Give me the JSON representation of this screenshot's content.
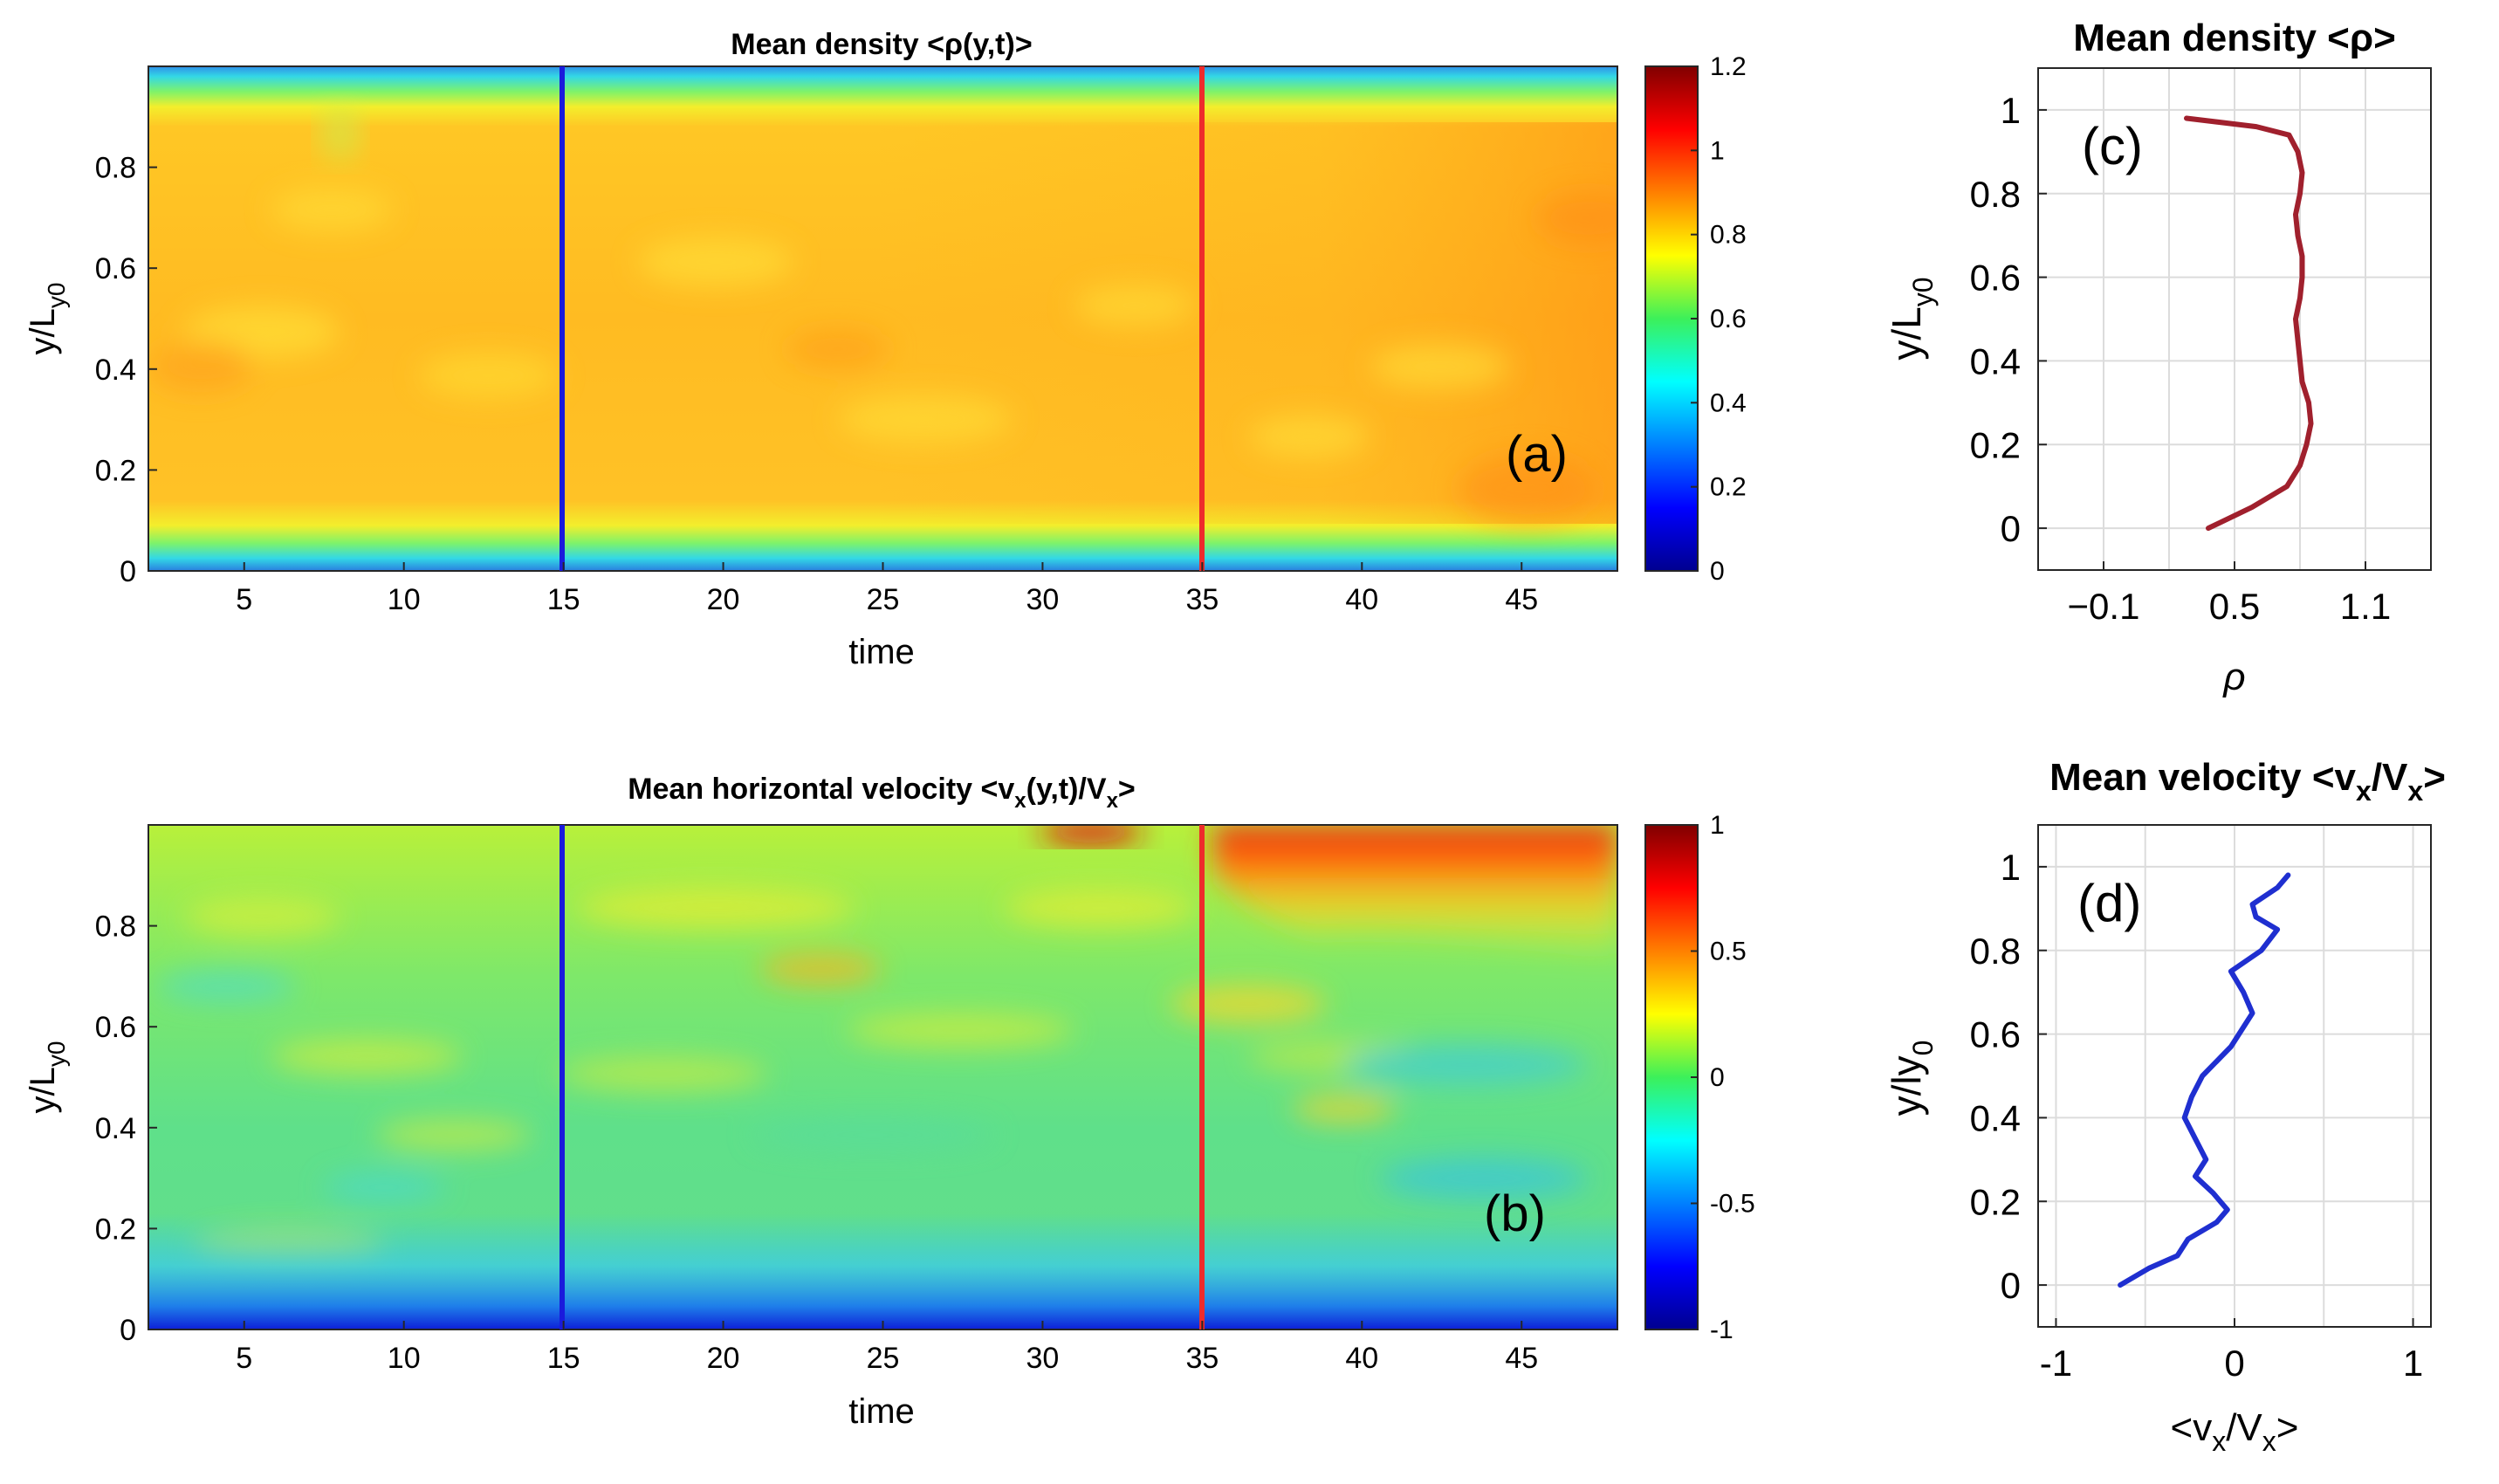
{
  "chart_data": [
    {
      "id": "a",
      "type": "heatmap",
      "title": "Mean density <ρ(y,t)>",
      "xlabel": "time",
      "ylabel_main": "y/L",
      "ylabel_sub": "y0",
      "panel_label": "(a)",
      "xlim": [
        2,
        48
      ],
      "ylim": [
        0,
        1
      ],
      "xticks": [
        5,
        10,
        15,
        20,
        25,
        30,
        35,
        40,
        45
      ],
      "yticks": [
        0,
        0.2,
        0.4,
        0.6,
        0.8
      ],
      "colorbar": {
        "range": [
          0,
          1.2
        ],
        "ticks": [
          0,
          0.2,
          0.4,
          0.6,
          0.8,
          1,
          1.2
        ],
        "colormap": "jet"
      },
      "markers": [
        {
          "x": 15,
          "color": "#1a1adc"
        },
        {
          "x": 35,
          "color": "#ee2b2b"
        }
      ]
    },
    {
      "id": "b",
      "type": "heatmap",
      "title": "Mean horizontal velocity <v",
      "title_parts": [
        "Mean horizontal velocity <v",
        "x",
        "(y,t)/V",
        "x",
        ">"
      ],
      "xlabel": "time",
      "ylabel_main": "y/L",
      "ylabel_sub": "y0",
      "panel_label": "(b)",
      "xlim": [
        2,
        48
      ],
      "ylim": [
        0,
        1
      ],
      "xticks": [
        5,
        10,
        15,
        20,
        25,
        30,
        35,
        40,
        45
      ],
      "yticks": [
        0,
        0.2,
        0.4,
        0.6,
        0.8
      ],
      "colorbar": {
        "range": [
          -1,
          1
        ],
        "ticks": [
          -1,
          -0.5,
          0,
          0.5,
          1
        ],
        "colormap": "jet"
      },
      "markers": [
        {
          "x": 15,
          "color": "#1a1adc"
        },
        {
          "x": 35,
          "color": "#ee2b2b"
        }
      ]
    },
    {
      "id": "c",
      "type": "line",
      "title": "Mean density <ρ>",
      "xlabel": "ρ",
      "ylabel_main": "y/L",
      "ylabel_sub": "y0",
      "panel_label": "(c)",
      "xlim": [
        -0.4,
        1.4
      ],
      "ylim": [
        -0.1,
        1.1
      ],
      "xticks": [
        -0.1,
        0.5,
        1.1
      ],
      "xtick_labels": [
        "−0.1",
        "0.5",
        "1.1"
      ],
      "xgrid": [
        -0.1,
        0.2,
        0.5,
        0.8,
        1.1
      ],
      "yticks": [
        0,
        0.2,
        0.4,
        0.6,
        0.8,
        1
      ],
      "series": [
        {
          "name": "mean density",
          "color": "#a0202d",
          "x": [
            0.38,
            0.58,
            0.74,
            0.8,
            0.83,
            0.85,
            0.84,
            0.81,
            0.8,
            0.79,
            0.78,
            0.8,
            0.81,
            0.81,
            0.79,
            0.78,
            0.8,
            0.81,
            0.79,
            0.77,
            0.75,
            0.6,
            0.28
          ],
          "y": [
            0.0,
            0.05,
            0.1,
            0.15,
            0.2,
            0.25,
            0.3,
            0.35,
            0.4,
            0.45,
            0.5,
            0.55,
            0.6,
            0.65,
            0.7,
            0.75,
            0.8,
            0.85,
            0.9,
            0.92,
            0.94,
            0.96,
            0.98
          ]
        }
      ]
    },
    {
      "id": "d",
      "type": "line",
      "title": "Mean velocity <v",
      "title_parts": [
        "Mean velocity <v",
        "x",
        "/V",
        "x",
        ">"
      ],
      "xlabel_parts": [
        "<v",
        "x",
        "/V",
        "x",
        ">"
      ],
      "ylabel_main": "y/ly",
      "ylabel_sub": "0",
      "panel_label": "(d)",
      "xlim": [
        -1.1,
        1.1
      ],
      "ylim": [
        -0.1,
        1.1
      ],
      "xticks": [
        -1,
        0,
        1
      ],
      "xtick_labels": [
        "-1",
        "0",
        "1"
      ],
      "xgrid": [
        -1,
        -0.5,
        0,
        0.5,
        1
      ],
      "yticks": [
        0,
        0.2,
        0.4,
        0.6,
        0.8,
        1
      ],
      "series": [
        {
          "name": "mean velocity",
          "color": "#1f2fd0",
          "x": [
            -0.64,
            -0.48,
            -0.32,
            -0.26,
            -0.1,
            -0.04,
            -0.12,
            -0.22,
            -0.16,
            -0.22,
            -0.28,
            -0.24,
            -0.18,
            -0.02,
            0.1,
            0.05,
            -0.02,
            0.15,
            0.24,
            0.12,
            0.1,
            0.24,
            0.3
          ],
          "y": [
            0.0,
            0.04,
            0.07,
            0.11,
            0.15,
            0.18,
            0.22,
            0.26,
            0.3,
            0.35,
            0.4,
            0.45,
            0.5,
            0.57,
            0.65,
            0.7,
            0.75,
            0.8,
            0.85,
            0.88,
            0.91,
            0.95,
            0.98
          ]
        }
      ]
    }
  ]
}
